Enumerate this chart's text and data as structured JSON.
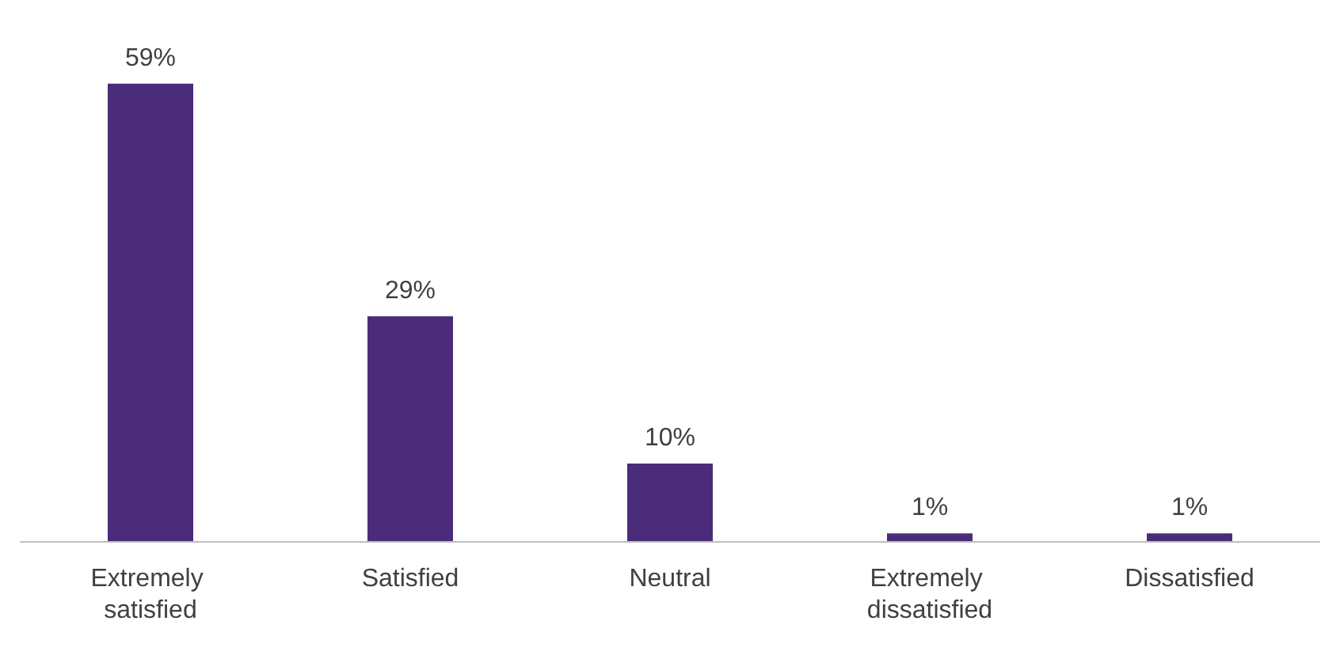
{
  "chart_data": {
    "type": "bar",
    "categories": [
      "Extremely satisfied",
      "Satisfied",
      "Neutral",
      "Extremely dissatisfied",
      "Dissatisfied"
    ],
    "values": [
      59,
      29,
      10,
      1,
      1
    ],
    "value_labels": [
      "59%",
      "29%",
      "10%",
      "1%",
      "1%"
    ],
    "color": "#4b2c7a"
  }
}
